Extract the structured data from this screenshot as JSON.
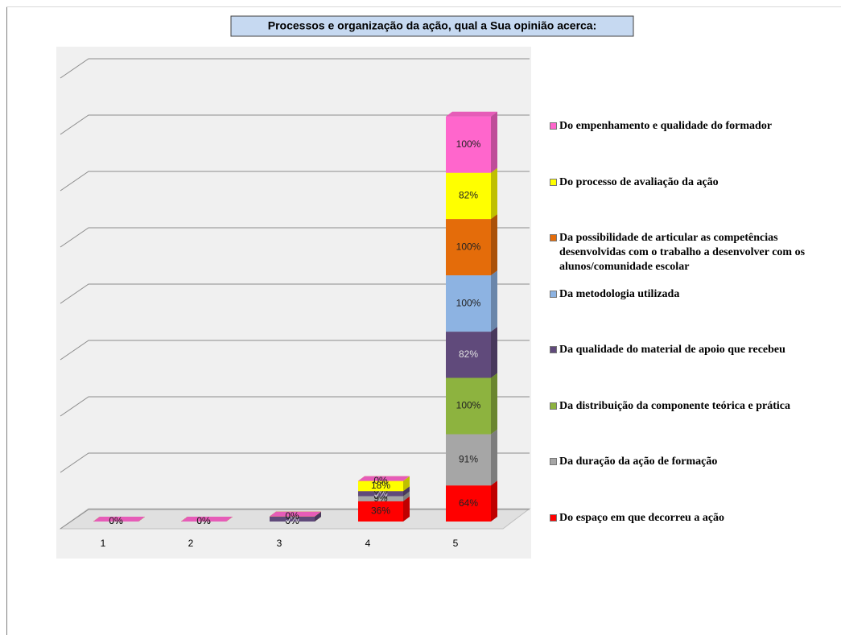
{
  "chart_data": {
    "type": "bar3d_stacked",
    "title": "Processos e organização da ação, qual a Sua opinião acerca:",
    "categories": [
      "1",
      "2",
      "3",
      "4",
      "5"
    ],
    "series": [
      {
        "name": "Do espaço em que decorreu a ação",
        "color": "#ff0000",
        "values": [
          0,
          0,
          0,
          36,
          64
        ],
        "value_labels": [
          "0%",
          "0%",
          "0%",
          "36%",
          "64%"
        ]
      },
      {
        "name": "Da duração da ação de formação",
        "color": "#a6a6a6",
        "values": [
          0,
          0,
          0,
          9,
          91
        ],
        "value_labels": [
          "0%",
          "0%",
          "0%",
          "9%",
          "91%"
        ]
      },
      {
        "name": "Da distribuição da componente teórica e prática",
        "color": "#8db33f",
        "values": [
          0,
          0,
          0,
          0,
          100
        ],
        "value_labels": [
          "0%",
          "0%",
          "0%",
          "0%",
          "100%"
        ]
      },
      {
        "name": "Da qualidade do material de apoio que recebeu",
        "color": "#604a7b",
        "values": [
          0,
          0,
          9,
          9,
          82
        ],
        "value_labels": [
          "0%",
          "0%",
          "9%",
          "9%",
          "82%"
        ]
      },
      {
        "name": "Da metodologia utilizada",
        "color": "#8db3e2",
        "values": [
          0,
          0,
          0,
          0,
          100
        ],
        "value_labels": [
          "0%",
          "0%",
          "0%",
          "0%",
          "100%"
        ]
      },
      {
        "name": "Da possibilidade de articular as competências desenvolvidas com o trabalho a desenvolver com os alunos/comunidade escolar",
        "color": "#e46c0a",
        "values": [
          0,
          0,
          0,
          0,
          100
        ],
        "value_labels": [
          "0%",
          "0%",
          "0%",
          "0%",
          "100%"
        ]
      },
      {
        "name": "Do processo de avaliação da ação",
        "color": "#ffff00",
        "values": [
          0,
          0,
          0,
          18,
          82
        ],
        "value_labels": [
          "0%",
          "0%",
          "0%",
          "18%",
          "82%"
        ]
      },
      {
        "name": "Do empenhamento e qualidade do formador",
        "color": "#ff66cc",
        "values": [
          0,
          0,
          0,
          0,
          100
        ],
        "value_labels": [
          "0%",
          "0%",
          "0%",
          "0%",
          "100%"
        ]
      }
    ],
    "ylim": [
      0,
      800
    ],
    "yticks": [
      0,
      100,
      200,
      300,
      400,
      500,
      600,
      700,
      800
    ],
    "grid": true
  }
}
